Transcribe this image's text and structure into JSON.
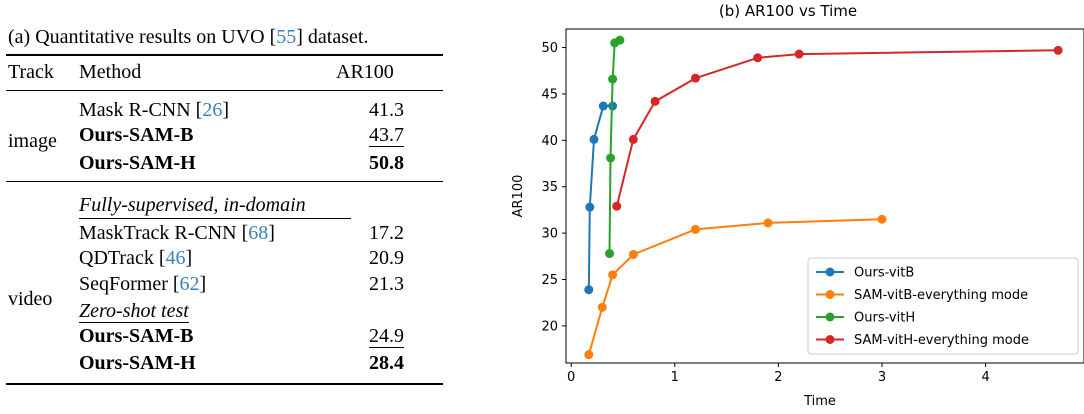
{
  "table": {
    "caption": "(a) Quantitative results on UVO [55] dataset.",
    "headers": {
      "track": "Track",
      "method": "Method",
      "metric": "AR100"
    },
    "image": {
      "label": "image",
      "rows": [
        {
          "method": "Mask R-CNN [26]",
          "value": "41.3"
        },
        {
          "method": "Ours-SAM-B",
          "value": "43.7"
        },
        {
          "method": "Ours-SAM-H",
          "value": "50.8"
        }
      ]
    },
    "video": {
      "label": "video",
      "sub1": "Fully-supervised, in-domain",
      "rows1": [
        {
          "method": "MaskTrack R-CNN [68]",
          "value": "17.2"
        },
        {
          "method": "QDTrack [46]",
          "value": "20.9"
        },
        {
          "method": "SeqFormer [62]",
          "value": "21.3"
        }
      ],
      "sub2": "Zero-shot test",
      "rows2": [
        {
          "method": "Ours-SAM-B",
          "value": "24.9"
        },
        {
          "method": "Ours-SAM-H",
          "value": "28.4"
        }
      ]
    }
  },
  "chart_data": {
    "type": "line",
    "title": "(b) AR100 vs Time",
    "xlabel": "Time",
    "ylabel": "AR100",
    "xlim": [
      -0.05,
      4.95
    ],
    "ylim": [
      16,
      52
    ],
    "xticks": [
      0,
      1,
      2,
      3,
      4
    ],
    "yticks": [
      20,
      25,
      30,
      35,
      40,
      45,
      50
    ],
    "legend_position": "lower-right",
    "series": [
      {
        "name": "Ours-vitB",
        "color": "#1f77b4",
        "x": [
          0.17,
          0.18,
          0.22,
          0.31,
          0.4
        ],
        "y": [
          23.9,
          32.8,
          40.1,
          43.7,
          43.7
        ]
      },
      {
        "name": "SAM-vitB-everything mode",
        "color": "#ff7f0e",
        "x": [
          0.17,
          0.3,
          0.4,
          0.6,
          1.2,
          1.9,
          3.0
        ],
        "y": [
          16.9,
          22.0,
          25.5,
          27.7,
          30.4,
          31.1,
          31.5
        ]
      },
      {
        "name": "Ours-vitH",
        "color": "#2ca02c",
        "x": [
          0.37,
          0.38,
          0.4,
          0.42,
          0.47
        ],
        "y": [
          27.8,
          38.1,
          46.6,
          50.5,
          50.8
        ]
      },
      {
        "name": "SAM-vitH-everything mode",
        "color": "#d62728",
        "x": [
          0.44,
          0.6,
          0.81,
          1.2,
          1.8,
          2.2,
          4.7
        ],
        "y": [
          32.9,
          40.1,
          44.2,
          46.7,
          48.9,
          49.3,
          49.7
        ]
      }
    ]
  }
}
